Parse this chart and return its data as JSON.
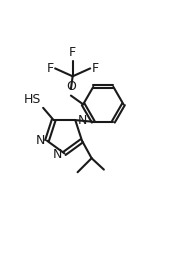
{
  "background_color": "#ffffff",
  "bond_color": "#1a1a1a",
  "text_color": "#1a1a1a",
  "figsize": [
    1.78,
    2.77
  ],
  "dpi": 100,
  "xlim": [
    0,
    10
  ],
  "ylim": [
    0,
    14
  ],
  "lw": 1.5,
  "fs": 9.0
}
